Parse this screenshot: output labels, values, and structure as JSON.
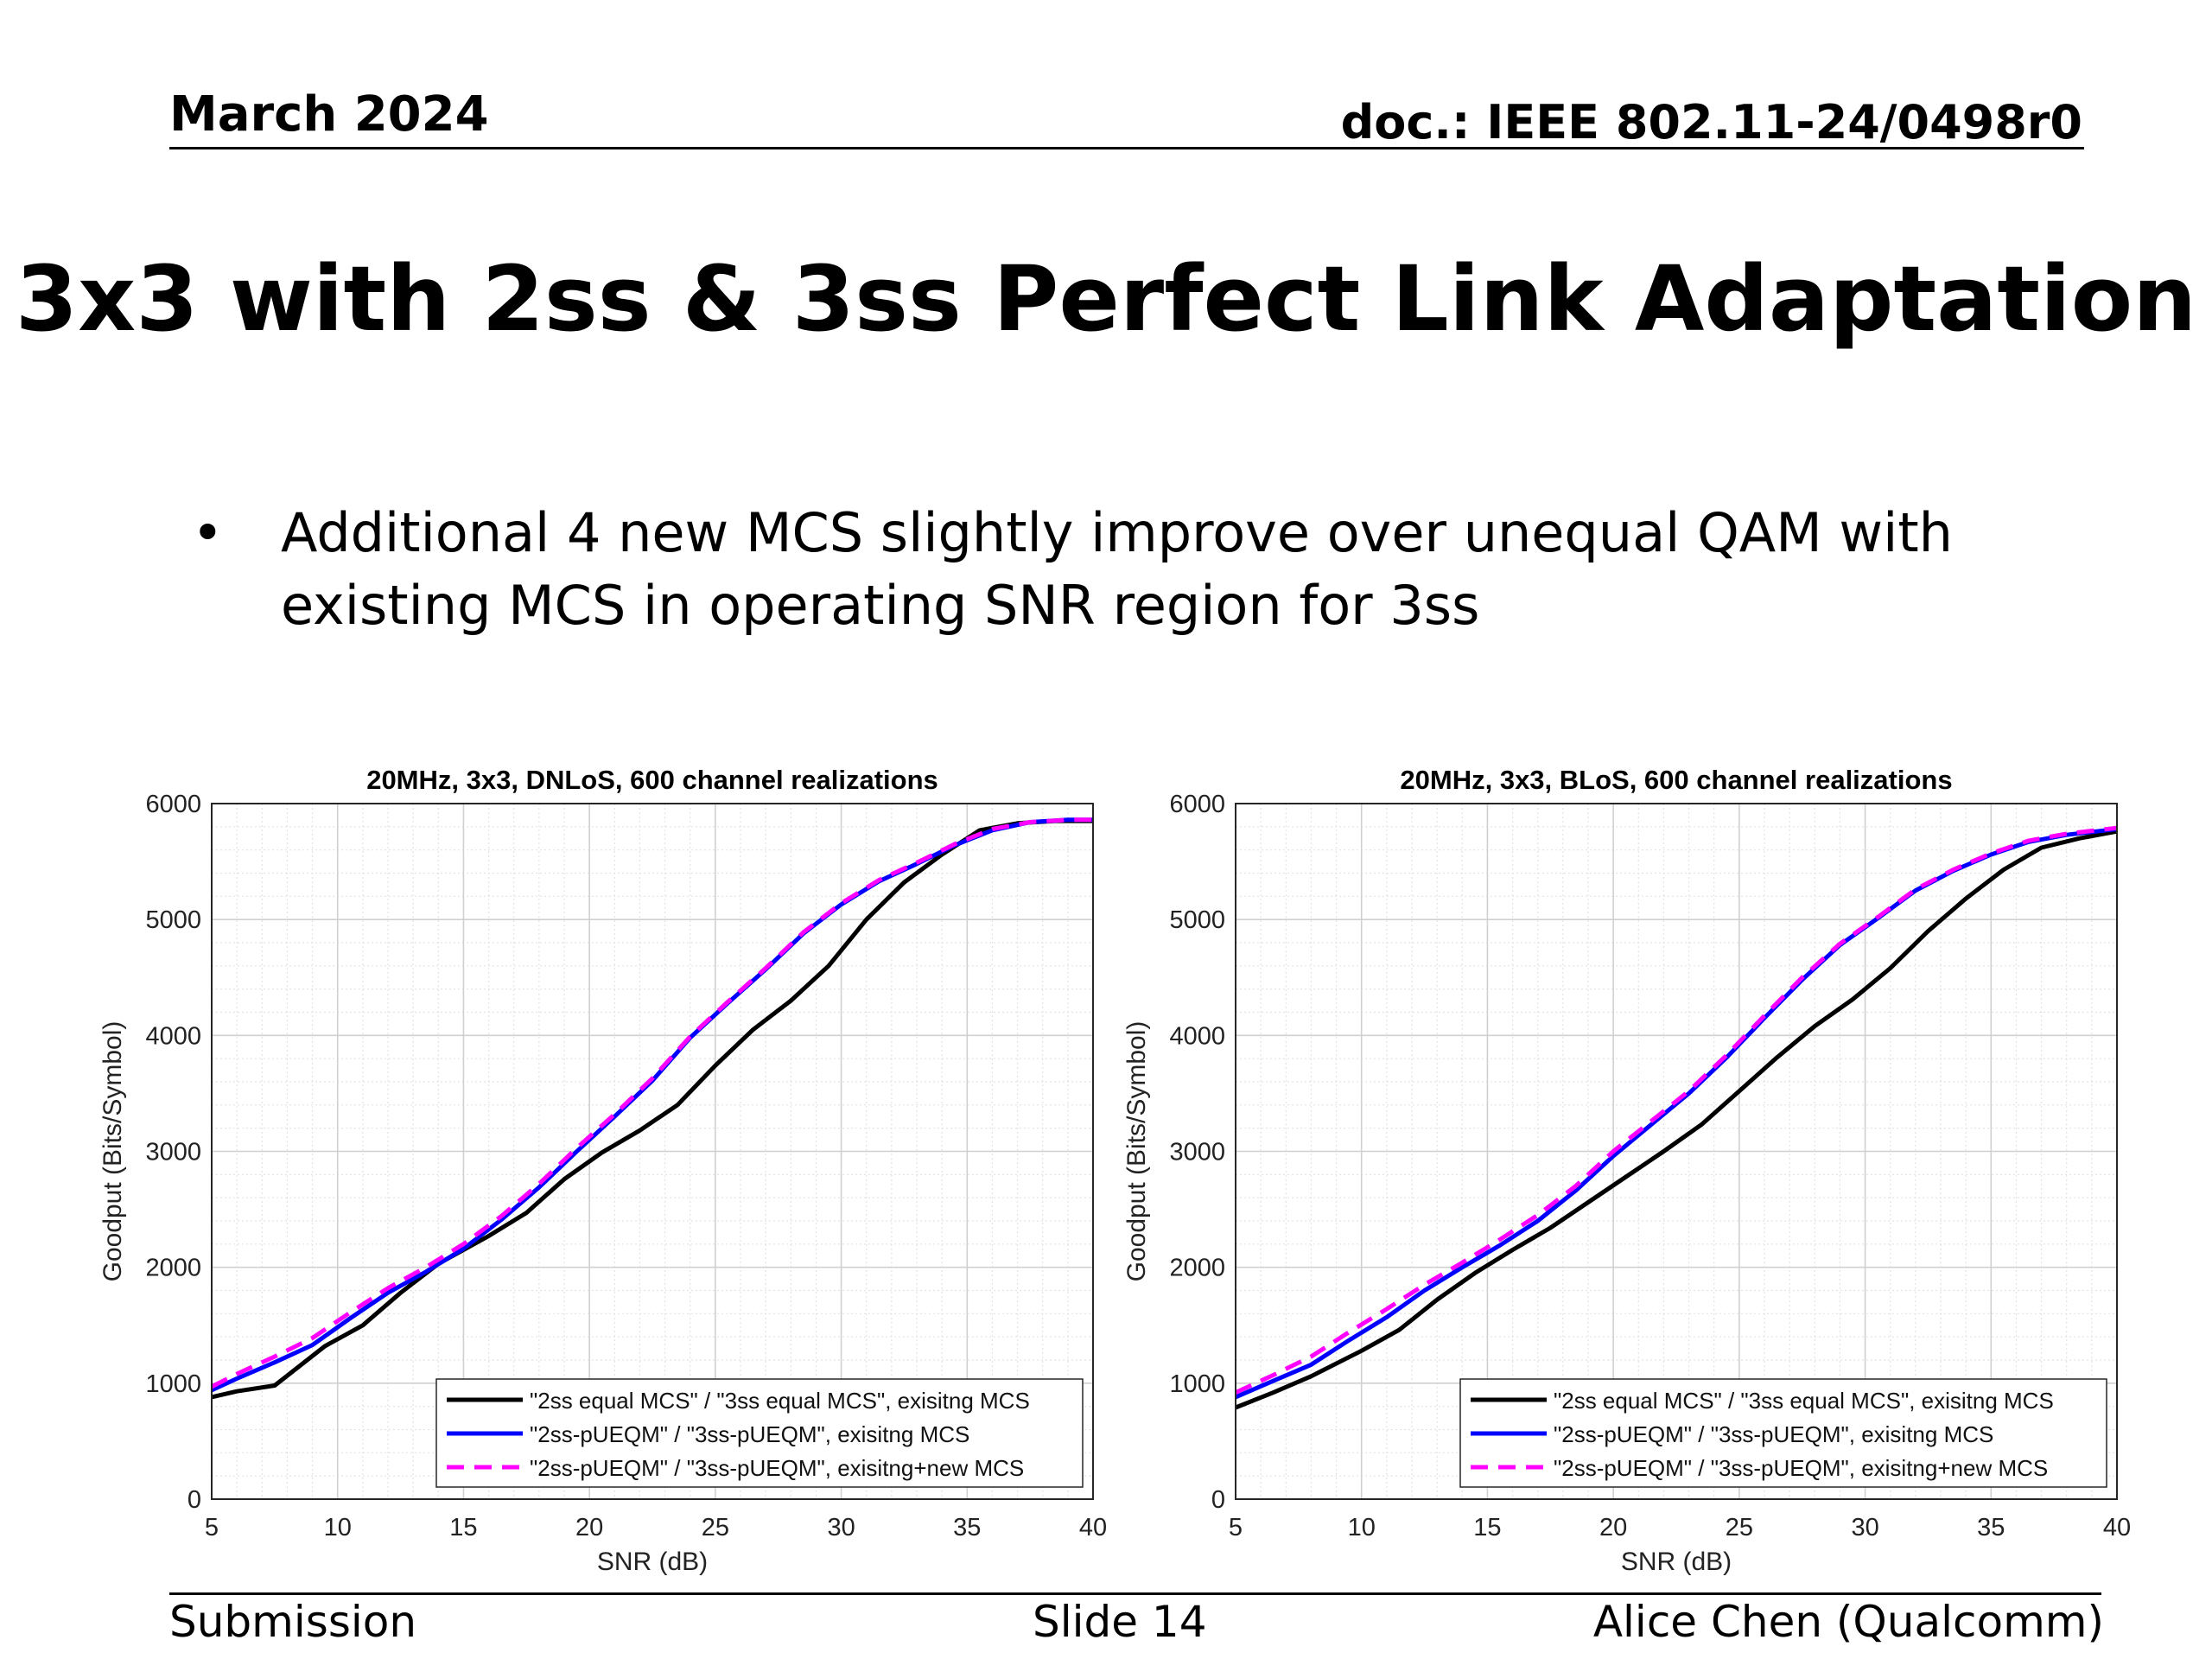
{
  "header": {
    "date": "March 2024",
    "doc": "doc.: IEEE 802.11-24/0498r0"
  },
  "title": "3x3 with 2ss & 3ss Perfect Link Adaptation",
  "bullets": [
    "Additional 4 new MCS slightly improve over unequal QAM with existing MCS in operating SNR region for 3ss"
  ],
  "footer": {
    "left": "Submission",
    "center": "Slide 14",
    "right": "Alice Chen (Qualcomm)"
  },
  "chart_data": [
    {
      "type": "line",
      "title": "20MHz, 3x3, DNLoS, 600 channel realizations",
      "xlabel": "SNR (dB)",
      "ylabel": "Goodput (Bits/Symbol)",
      "xlim": [
        5,
        40
      ],
      "ylim": [
        0,
        6000
      ],
      "xticks": [
        5,
        10,
        15,
        20,
        25,
        30,
        35,
        40
      ],
      "yticks": [
        0,
        1000,
        2000,
        3000,
        4000,
        5000,
        6000
      ],
      "grid": true,
      "legend_position": "bottom-right",
      "series": [
        {
          "name": "\"2ss equal MCS\" / \"3ss equal MCS\", exisitng MCS",
          "color": "#000000",
          "dash": false,
          "x": [
            5,
            6,
            7.5,
            9.5,
            11,
            12.5,
            14,
            16,
            17.5,
            19,
            20.5,
            22,
            23.5,
            25,
            26.5,
            28,
            29.5,
            31,
            32.5,
            34,
            35.5,
            37,
            38.5,
            40
          ],
          "y": [
            880,
            930,
            980,
            1320,
            1500,
            1780,
            2030,
            2270,
            2470,
            2760,
            2990,
            3180,
            3400,
            3740,
            4050,
            4300,
            4600,
            5000,
            5320,
            5560,
            5770,
            5830,
            5850,
            5850
          ]
        },
        {
          "name": "\"2ss-pUEQM\" / \"3ss-pUEQM\", exisitng MCS",
          "color": "#0000ff",
          "dash": false,
          "x": [
            5,
            6,
            7.5,
            9,
            10.5,
            12,
            13.5,
            15,
            16.5,
            18,
            19.5,
            21,
            22.5,
            24,
            25.5,
            27,
            28.5,
            30,
            31.5,
            33,
            34.5,
            36,
            37.5,
            39,
            40
          ],
          "y": [
            940,
            1040,
            1180,
            1330,
            1560,
            1780,
            1960,
            2160,
            2410,
            2690,
            3000,
            3300,
            3610,
            3980,
            4280,
            4570,
            4880,
            5130,
            5330,
            5480,
            5640,
            5770,
            5840,
            5860,
            5860
          ]
        },
        {
          "name": "\"2ss-pUEQM\" / \"3ss-pUEQM\", exisitng+new MCS",
          "color": "#ff00ff",
          "dash": true,
          "x": [
            5,
            6,
            7.5,
            9,
            10.5,
            12,
            13.5,
            15,
            16.5,
            18,
            19.5,
            21,
            22.5,
            24,
            25.5,
            27,
            28.5,
            30,
            31.5,
            33,
            34.5,
            36,
            37.5,
            39,
            40
          ],
          "y": [
            970,
            1080,
            1230,
            1390,
            1610,
            1820,
            2000,
            2200,
            2440,
            2720,
            3030,
            3320,
            3630,
            3990,
            4290,
            4580,
            4890,
            5140,
            5340,
            5490,
            5650,
            5780,
            5840,
            5860,
            5860
          ]
        }
      ]
    },
    {
      "type": "line",
      "title": "20MHz, 3x3, BLoS, 600 channel realizations",
      "xlabel": "SNR (dB)",
      "ylabel": "Goodput (Bits/Symbol)",
      "xlim": [
        5,
        40
      ],
      "ylim": [
        0,
        6000
      ],
      "xticks": [
        5,
        10,
        15,
        20,
        25,
        30,
        35,
        40
      ],
      "yticks": [
        0,
        1000,
        2000,
        3000,
        4000,
        5000,
        6000
      ],
      "grid": true,
      "legend_position": "bottom-right",
      "series": [
        {
          "name": "\"2ss equal MCS\" / \"3ss equal MCS\", exisitng MCS",
          "color": "#000000",
          "dash": false,
          "x": [
            5,
            6.5,
            8,
            10,
            11.5,
            13,
            14.5,
            16,
            17.5,
            19,
            20.5,
            22,
            23.5,
            25,
            26.5,
            28,
            29.5,
            31,
            32.5,
            34,
            35.5,
            37,
            38.5,
            40
          ],
          "y": [
            790,
            920,
            1060,
            1280,
            1460,
            1720,
            1950,
            2150,
            2340,
            2560,
            2780,
            3000,
            3230,
            3520,
            3810,
            4080,
            4310,
            4580,
            4900,
            5180,
            5430,
            5620,
            5700,
            5760
          ]
        },
        {
          "name": "\"2ss-pUEQM\" / \"3ss-pUEQM\", exisitng MCS",
          "color": "#0000ff",
          "dash": false,
          "x": [
            5,
            6.5,
            8,
            9.5,
            11,
            12.5,
            14,
            15.5,
            17,
            18.5,
            20,
            21.5,
            23,
            24.5,
            26,
            27.5,
            29,
            30.5,
            32,
            33.5,
            35,
            36.5,
            38,
            40
          ],
          "y": [
            880,
            1020,
            1160,
            1370,
            1570,
            1800,
            2000,
            2190,
            2400,
            2660,
            2960,
            3230,
            3500,
            3810,
            4150,
            4480,
            4780,
            5010,
            5250,
            5420,
            5560,
            5670,
            5730,
            5780
          ]
        },
        {
          "name": "\"2ss-pUEQM\" / \"3ss-pUEQM\", exisitng+new MCS",
          "color": "#ff00ff",
          "dash": true,
          "x": [
            5,
            6.5,
            8,
            9.5,
            11,
            12.5,
            14,
            15.5,
            17,
            18.5,
            20,
            21.5,
            23,
            24.5,
            26,
            27.5,
            29,
            30.5,
            32,
            33.5,
            35,
            36.5,
            38,
            40
          ],
          "y": [
            920,
            1070,
            1230,
            1440,
            1640,
            1850,
            2040,
            2240,
            2450,
            2700,
            3000,
            3260,
            3520,
            3830,
            4170,
            4500,
            4790,
            5020,
            5260,
            5430,
            5570,
            5680,
            5740,
            5790
          ]
        }
      ]
    }
  ]
}
